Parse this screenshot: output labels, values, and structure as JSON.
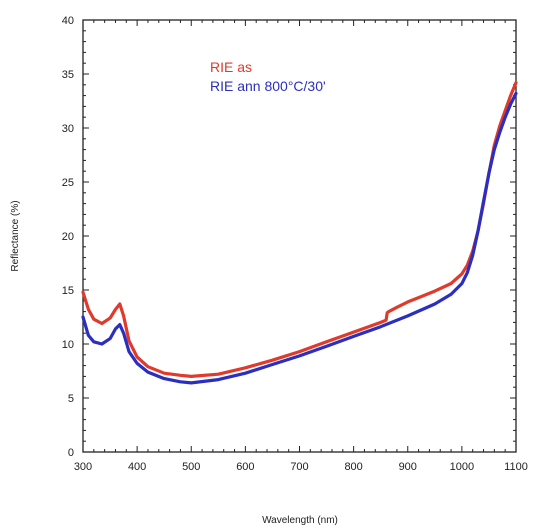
{
  "chart_data": {
    "type": "line",
    "title": "",
    "xlabel": "Wavelength (nm)",
    "ylabel": "Reflectance (%)",
    "xlim": [
      300,
      1100
    ],
    "ylim": [
      0,
      40
    ],
    "xticks": [
      300,
      400,
      500,
      600,
      700,
      800,
      900,
      1000,
      1100
    ],
    "yticks": [
      0,
      5,
      10,
      15,
      20,
      25,
      30,
      35,
      40
    ],
    "grid": false,
    "legend_position": "top-center",
    "series": [
      {
        "name": "RIE as",
        "color": "#e03a2c",
        "x": [
          300,
          310,
          320,
          335,
          350,
          360,
          368,
          375,
          385,
          400,
          420,
          450,
          480,
          500,
          550,
          600,
          650,
          700,
          750,
          800,
          850,
          860,
          862,
          865,
          880,
          900,
          920,
          950,
          980,
          1000,
          1010,
          1020,
          1030,
          1040,
          1050,
          1060,
          1070,
          1080,
          1090,
          1100
        ],
        "y": [
          14.8,
          13.2,
          12.3,
          11.9,
          12.4,
          13.2,
          13.7,
          12.6,
          10.3,
          8.8,
          7.9,
          7.3,
          7.1,
          7.0,
          7.2,
          7.8,
          8.5,
          9.3,
          10.2,
          11.1,
          12.0,
          12.2,
          12.9,
          13.0,
          13.4,
          13.9,
          14.3,
          14.9,
          15.6,
          16.5,
          17.3,
          18.6,
          20.5,
          23.0,
          25.8,
          28.4,
          30.2,
          31.6,
          33.0,
          34.2
        ]
      },
      {
        "name": "RIE ann 800°C/30'",
        "color": "#2b2fc0",
        "x": [
          300,
          310,
          320,
          335,
          350,
          360,
          368,
          375,
          385,
          400,
          420,
          450,
          480,
          500,
          550,
          600,
          650,
          700,
          750,
          800,
          850,
          900,
          950,
          980,
          1000,
          1010,
          1020,
          1030,
          1040,
          1050,
          1060,
          1070,
          1080,
          1090,
          1100
        ],
        "y": [
          12.5,
          10.8,
          10.2,
          10.0,
          10.5,
          11.4,
          11.8,
          11.0,
          9.3,
          8.2,
          7.4,
          6.8,
          6.5,
          6.4,
          6.7,
          7.3,
          8.1,
          8.9,
          9.8,
          10.7,
          11.6,
          12.6,
          13.7,
          14.6,
          15.6,
          16.6,
          18.2,
          20.5,
          23.2,
          25.8,
          28.0,
          29.6,
          31.0,
          32.2,
          33.2
        ]
      }
    ]
  }
}
